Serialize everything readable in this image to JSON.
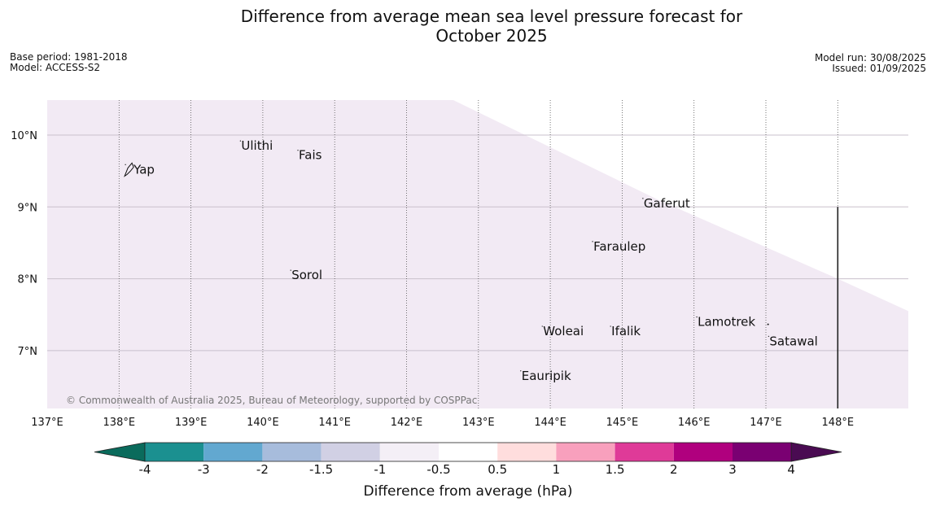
{
  "header": {
    "title_line1": "Difference from average mean sea level pressure forecast for",
    "title_line2": "October 2025",
    "base_period": "Base period: 1981-2018",
    "model": "Model: ACCESS-S2",
    "model_run": "Model run: 30/08/2025",
    "issued": "Issued: 01/09/2025"
  },
  "map": {
    "lon_range": [
      137,
      149
    ],
    "lat_range": [
      6.2,
      10.5
    ],
    "lon_ticks": [
      137,
      138,
      139,
      140,
      141,
      142,
      143,
      144,
      145,
      146,
      147,
      148
    ],
    "lon_labels": [
      "137°E",
      "138°E",
      "139°E",
      "140°E",
      "141°E",
      "142°E",
      "143°E",
      "144°E",
      "145°E",
      "146°E",
      "147°E",
      "148°E"
    ],
    "lat_ticks": [
      7,
      8,
      9,
      10
    ],
    "lat_labels": [
      "7°N",
      "8°N",
      "9°N",
      "10°N"
    ],
    "fill_color": "#f2eaf4",
    "fill_category": "-1 to -0.5",
    "fill_boundary": [
      [
        142.65,
        10.5
      ],
      [
        145.5,
        9.1
      ],
      [
        148,
        8.0
      ],
      [
        149,
        7.55
      ]
    ],
    "reference_line": {
      "lon": 148,
      "lat_from": 6.2,
      "lat_to": 9.0
    },
    "copyright": "© Commonwealth of Australia 2025, Bureau of Meteorology, supported by COSPPac",
    "places": [
      {
        "name": "Yap",
        "lon": 138.1,
        "lat": 9.52
      },
      {
        "name": "Ulithi",
        "lon": 139.7,
        "lat": 9.85
      },
      {
        "name": "Fais",
        "lon": 140.5,
        "lat": 9.72
      },
      {
        "name": "Gaferut",
        "lon": 145.3,
        "lat": 9.05
      },
      {
        "name": "Faraulep",
        "lon": 144.6,
        "lat": 8.45
      },
      {
        "name": "Sorol",
        "lon": 140.4,
        "lat": 8.05
      },
      {
        "name": "Woleai",
        "lon": 143.9,
        "lat": 7.27
      },
      {
        "name": "Ifalik",
        "lon": 144.85,
        "lat": 7.27
      },
      {
        "name": "Lamotrek",
        "lon": 146.05,
        "lat": 7.4
      },
      {
        "name": "Satawal",
        "lon": 147.05,
        "lat": 7.13
      },
      {
        "name": "Eauripik",
        "lon": 143.6,
        "lat": 6.65
      }
    ]
  },
  "colorbar": {
    "title": "Difference from average (hPa)",
    "labels": [
      "-4",
      "-3",
      "-2",
      "-1.5",
      "-1",
      "-0.5",
      "0.5",
      "1",
      "1.5",
      "2",
      "3",
      "4"
    ],
    "under_color": "#0a6b5c",
    "over_color": "#4a0b52",
    "colors": [
      "#1b9090",
      "#62a8d0",
      "#a7bcdc",
      "#d1d0e4",
      "#f4eff6",
      "#ffffff",
      "#ffdddd",
      "#f8a0bd",
      "#df3a98",
      "#b0007e",
      "#7a0072"
    ]
  }
}
